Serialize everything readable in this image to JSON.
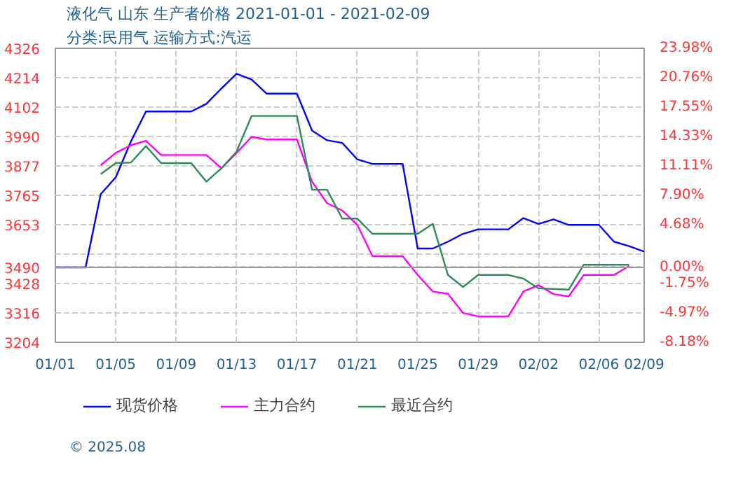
{
  "chart_data": {
    "type": "line",
    "title": "液化气 山东 生产者价格 2021-01-01 - 2021-02-09",
    "subtitle": "分类:民用气 运输方式:汽运",
    "xlim": [
      "2021-01-01",
      "2021-02-09"
    ],
    "xticks": [
      {
        "value": "2021-01-01",
        "label": "01/01"
      },
      {
        "value": "2021-01-05",
        "label": "01/05"
      },
      {
        "value": "2021-01-09",
        "label": "01/09"
      },
      {
        "value": "2021-01-13",
        "label": "01/13"
      },
      {
        "value": "2021-01-17",
        "label": "01/17"
      },
      {
        "value": "2021-01-21",
        "label": "01/21"
      },
      {
        "value": "2021-01-25",
        "label": "01/25"
      },
      {
        "value": "2021-01-29",
        "label": "01/29"
      },
      {
        "value": "2021-02-02",
        "label": "02/02"
      },
      {
        "value": "2021-02-06",
        "label": "02/06"
      },
      {
        "value": "2021-02-09",
        "label": "02/09"
      }
    ],
    "ylim": [
      3204,
      4326
    ],
    "yticks": [
      3204,
      3316,
      3428,
      3490,
      {
        "value": 3541,
        "label": null
      },
      3653,
      3765,
      3877,
      3990,
      4102,
      4214,
      4326
    ],
    "y2lim": [
      -8.18,
      23.98
    ],
    "y2ticks": [
      {
        "value": -8.18,
        "label": "-8.18%"
      },
      {
        "value": -4.97,
        "label": "-4.97%"
      },
      {
        "value": -1.75,
        "label": "-1.75%"
      },
      {
        "value": 0,
        "label": "0.00%"
      },
      {
        "value": 4.68,
        "label": "4.68%"
      },
      {
        "value": 7.9,
        "label": "7.90%"
      },
      {
        "value": 11.11,
        "label": "11.11%"
      },
      {
        "value": 14.33,
        "label": "14.33%"
      },
      {
        "value": 17.55,
        "label": "17.55%"
      },
      {
        "value": 20.76,
        "label": "20.76%"
      },
      {
        "value": 23.98,
        "label": "23.98%"
      }
    ],
    "grid": true,
    "legend": "bottom",
    "line_style": "solid",
    "ref_lines": [
      {
        "axis": "y",
        "value": 3490,
        "color": "#999999"
      }
    ],
    "annotations": [
      "© 2025.08"
    ],
    "series": [
      {
        "name": "现货价格",
        "color": "#0000ff",
        "x": [
          "2021-01-01",
          "2021-01-03",
          "2021-01-04",
          "2021-01-05",
          "2021-01-06",
          "2021-01-07",
          "2021-01-10",
          "2021-01-11",
          "2021-01-12",
          "2021-01-13",
          "2021-01-14",
          "2021-01-15",
          "2021-01-17",
          "2021-01-18",
          "2021-01-19",
          "2021-01-20",
          "2021-01-21",
          "2021-01-22",
          "2021-01-24",
          "2021-01-25",
          "2021-01-26",
          "2021-01-27",
          "2021-01-28",
          "2021-01-29",
          "2021-01-31",
          "2021-02-01",
          "2021-02-02",
          "2021-02-03",
          "2021-02-04",
          "2021-02-06",
          "2021-02-07",
          "2021-02-08",
          "2021-02-09"
        ],
        "values": [
          3490,
          3490,
          3769,
          3834,
          3970,
          4085,
          4085,
          4114,
          4173,
          4229,
          4207,
          4153,
          4153,
          4012,
          3975,
          3965,
          3902,
          3885,
          3885,
          3562,
          3562,
          3588,
          3618,
          3635,
          3635,
          3678,
          3656,
          3673,
          3652,
          3652,
          3588,
          3571,
          3550
        ]
      },
      {
        "name": "主力合约",
        "color": "#ff00ff",
        "x": [
          "2021-01-04",
          "2021-01-05",
          "2021-01-06",
          "2021-01-07",
          "2021-01-08",
          "2021-01-11",
          "2021-01-12",
          "2021-01-13",
          "2021-01-14",
          "2021-01-15",
          "2021-01-17",
          "2021-01-18",
          "2021-01-19",
          "2021-01-20",
          "2021-01-21",
          "2021-01-22",
          "2021-01-24",
          "2021-01-25",
          "2021-01-26",
          "2021-01-27",
          "2021-01-28",
          "2021-01-29",
          "2021-01-31",
          "2021-02-01",
          "2021-02-02",
          "2021-02-03",
          "2021-02-04",
          "2021-02-05",
          "2021-02-07",
          "2021-02-08"
        ],
        "values": [
          3880,
          3927,
          3956,
          3973,
          3919,
          3919,
          3868,
          3927,
          3988,
          3978,
          3978,
          3817,
          3735,
          3707,
          3652,
          3533,
          3533,
          3461,
          3398,
          3389,
          3316,
          3303,
          3303,
          3398,
          3422,
          3388,
          3379,
          3461,
          3461,
          3495
        ]
      },
      {
        "name": "最近合约",
        "color": "#2e8b57",
        "x": [
          "2021-01-04",
          "2021-01-05",
          "2021-01-06",
          "2021-01-07",
          "2021-01-08",
          "2021-01-10",
          "2021-01-11",
          "2021-01-12",
          "2021-01-13",
          "2021-01-14",
          "2021-01-17",
          "2021-01-18",
          "2021-01-19",
          "2021-01-20",
          "2021-01-21",
          "2021-01-22",
          "2021-01-25",
          "2021-01-26",
          "2021-01-27",
          "2021-01-28",
          "2021-01-29",
          "2021-01-31",
          "2021-02-01",
          "2021-02-02",
          "2021-02-04",
          "2021-02-05",
          "2021-02-08"
        ],
        "values": [
          3846,
          3888,
          3890,
          3953,
          3888,
          3888,
          3817,
          3868,
          3932,
          4068,
          4068,
          3786,
          3786,
          3676,
          3676,
          3618,
          3618,
          3656,
          3461,
          3415,
          3461,
          3461,
          3447,
          3410,
          3405,
          3500,
          3500
        ]
      }
    ]
  }
}
